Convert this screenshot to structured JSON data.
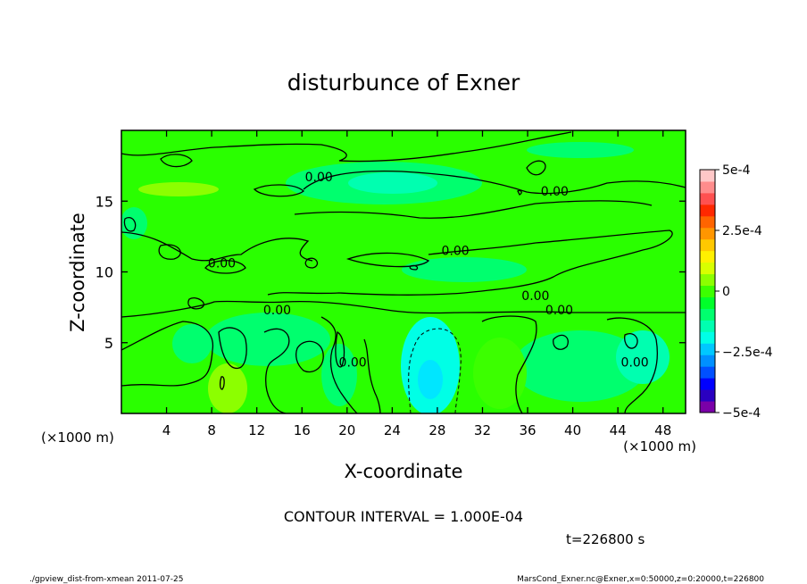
{
  "chart_data": {
    "type": "heatmap",
    "title": "disturbunce of Exner",
    "xlabel": "X-coordinate",
    "ylabel": "Z-coordinate",
    "x_unit": "(×1000 m)",
    "y_unit": "(×1000 m)",
    "xlim": [
      0,
      50
    ],
    "ylim": [
      0,
      20
    ],
    "x_ticks": [
      {
        "v": 4,
        "label": "4"
      },
      {
        "v": 8,
        "label": "8"
      },
      {
        "v": 12,
        "label": "12"
      },
      {
        "v": 16,
        "label": "16"
      },
      {
        "v": 20,
        "label": "20"
      },
      {
        "v": 24,
        "label": "24"
      },
      {
        "v": 28,
        "label": "28"
      },
      {
        "v": 32,
        "label": "32"
      },
      {
        "v": 36,
        "label": "36"
      },
      {
        "v": 40,
        "label": "40"
      },
      {
        "v": 44,
        "label": "44"
      },
      {
        "v": 48,
        "label": "48"
      }
    ],
    "y_ticks": [
      {
        "v": 5,
        "label": "5"
      },
      {
        "v": 10,
        "label": "10"
      },
      {
        "v": 15,
        "label": "15"
      }
    ],
    "colorbar": {
      "min": -0.0005,
      "max": 0.0005,
      "colors": [
        "#7a00a8",
        "#2a00c0",
        "#0000ff",
        "#0050ff",
        "#0090ff",
        "#00c8ff",
        "#00ffe6",
        "#00ffb0",
        "#00ff6e",
        "#00ff2a",
        "#3cff00",
        "#8cff00",
        "#d8ff00",
        "#fff000",
        "#ffc800",
        "#ff9600",
        "#ff6400",
        "#ff2800",
        "#ff5050",
        "#ff8c8c",
        "#ffc8c8"
      ],
      "ticks": [
        {
          "v": 0.0005,
          "label": "5e-4"
        },
        {
          "v": 0.00025,
          "label": "2.5e-4"
        },
        {
          "v": 0,
          "label": "0"
        },
        {
          "v": -0.00025,
          "label": "−2.5e-4"
        },
        {
          "v": -0.0005,
          "label": "−5e-4"
        }
      ]
    },
    "contour_interval": 0.0001,
    "contour_labels": [
      {
        "x": 17.5,
        "z": 16.4,
        "label": "0.00"
      },
      {
        "x": 38.4,
        "z": 15.4,
        "label": "0.00"
      },
      {
        "x": 8.9,
        "z": 10.3,
        "label": "0.00"
      },
      {
        "x": 29.6,
        "z": 11.2,
        "label": "0.00"
      },
      {
        "x": 36.7,
        "z": 8.0,
        "label": "0.00"
      },
      {
        "x": 13.8,
        "z": 7.0,
        "label": "0.00"
      },
      {
        "x": 38.8,
        "z": 7.0,
        "label": "0.00"
      },
      {
        "x": 20.5,
        "z": 3.3,
        "label": "0.00"
      },
      {
        "x": 45.5,
        "z": 3.3,
        "label": "0.00"
      }
    ]
  },
  "annotations": {
    "contour_interval_text": "CONTOUR INTERVAL = 1.000E-04",
    "time_text": "t=226800 s",
    "footer_left": "./gpview_dist-from-xmean  2011-07-25",
    "footer_right": "MarsCond_Exner.nc@Exner,x=0:50000,z=0:20000,t=226800"
  }
}
